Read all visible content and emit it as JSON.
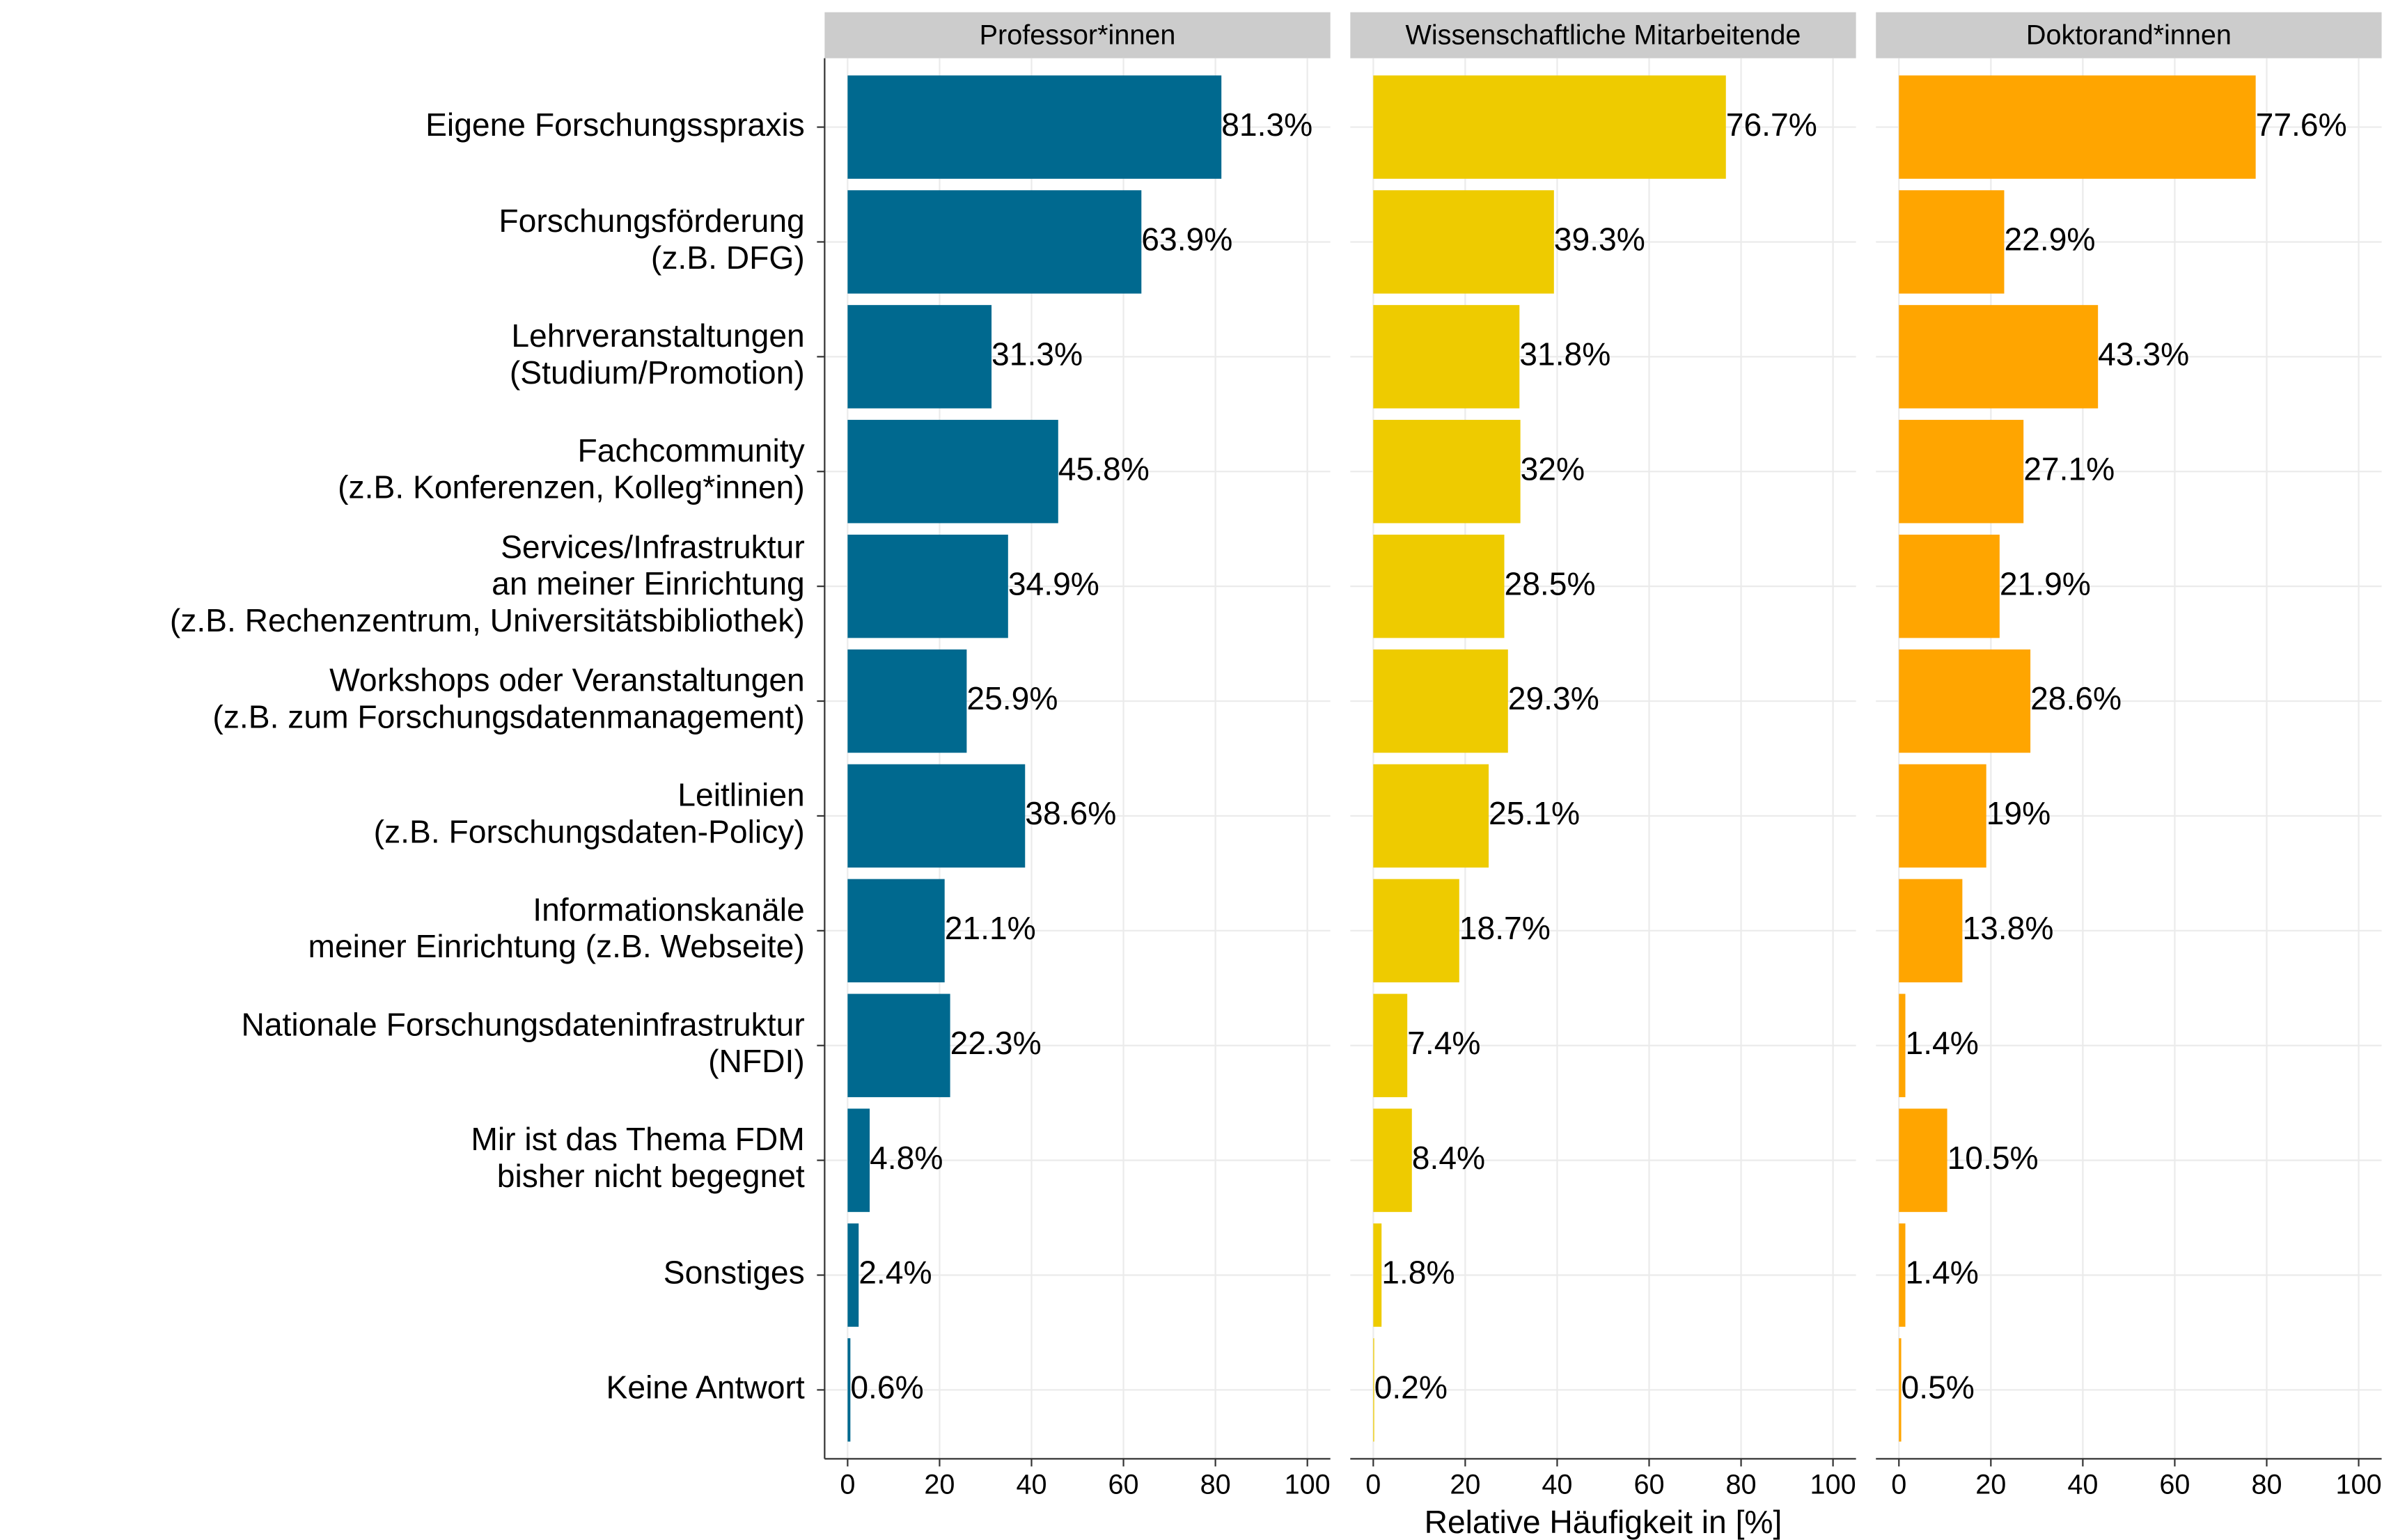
{
  "chart_data": {
    "type": "bar",
    "orientation": "horizontal",
    "xlabel": "Relative Häufigkeit in [%]",
    "categories": [
      "Eigene Forschungsspraxis",
      "Forschungsförderung\n(z.B. DFG)",
      "Lehrveranstaltungen\n(Studium/Promotion)",
      "Fachcommunity\n(z.B. Konferenzen, Kolleg*innen)",
      "Services/Infrastruktur\nan meiner Einrichtung\n(z.B. Rechenzentrum, Universitätsbibliothek)",
      "Workshops oder Veranstaltungen\n(z.B. zum Forschungsdatenmanagement)",
      "Leitlinien\n(z.B. Forschungsdaten-Policy)",
      "Informationskanäle\nmeiner Einrichtung (z.B. Webseite)",
      "Nationale Forschungsdateninfrastruktur\n(NFDI)",
      "Mir ist das Thema FDM\nbisher nicht begegnet",
      "Sonstiges",
      "Keine Antwort"
    ],
    "series": [
      {
        "name": "Professor*innen",
        "color": "#00698f",
        "values": [
          81.3,
          63.9,
          31.3,
          45.8,
          34.9,
          25.9,
          38.6,
          21.1,
          22.3,
          4.8,
          2.4,
          0.6
        ],
        "value_labels": [
          "81.3%",
          "63.9%",
          "31.3%",
          "45.8%",
          "34.9%",
          "25.9%",
          "38.6%",
          "21.1%",
          "22.3%",
          "4.8%",
          "2.4%",
          "0.6%"
        ]
      },
      {
        "name": "Wissenschaftliche Mitarbeitende",
        "color": "#eecb00",
        "values": [
          76.7,
          39.3,
          31.8,
          32,
          28.5,
          29.3,
          25.1,
          18.7,
          7.4,
          8.4,
          1.8,
          0.2
        ],
        "value_labels": [
          "76.7%",
          "39.3%",
          "31.8%",
          "32%",
          "28.5%",
          "29.3%",
          "25.1%",
          "18.7%",
          "7.4%",
          "8.4%",
          "1.8%",
          "0.2%"
        ]
      },
      {
        "name": "Doktorand*innen",
        "color": "#ffa500",
        "values": [
          77.6,
          22.9,
          43.3,
          27.1,
          21.9,
          28.6,
          19,
          13.8,
          1.4,
          10.5,
          1.4,
          0.5
        ],
        "value_labels": [
          "77.6%",
          "22.9%",
          "43.3%",
          "27.1%",
          "21.9%",
          "28.6%",
          "19%",
          "13.8%",
          "1.4%",
          "10.5%",
          "1.4%",
          "0.5%"
        ]
      }
    ],
    "xlim": [
      -5,
      105
    ],
    "xticks": [
      0,
      20,
      40,
      60,
      80,
      100
    ],
    "grid": true
  }
}
